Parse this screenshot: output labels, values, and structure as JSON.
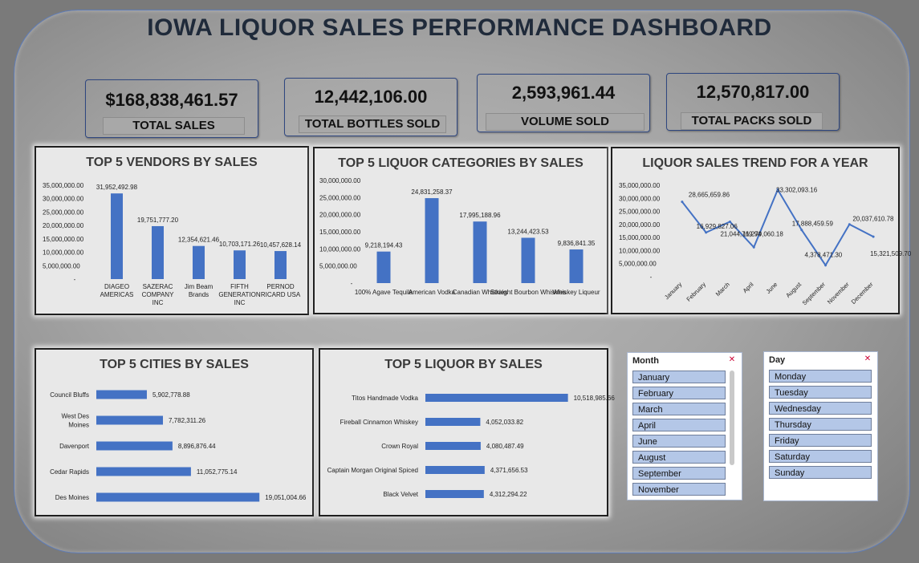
{
  "title": "IOWA LIQUOR SALES PERFORMANCE DASHBOARD",
  "kpis": [
    {
      "value": "$168,838,461.57",
      "label": "TOTAL SALES"
    },
    {
      "value": "12,442,106.00",
      "label": "TOTAL BOTTLES SOLD"
    },
    {
      "value": "2,593,961.44",
      "label": "VOLUME SOLD"
    },
    {
      "value": "12,570,817.00",
      "label": "TOTAL PACKS SOLD"
    }
  ],
  "colors": {
    "bar": "#4472c4",
    "axis_text": "#222222"
  },
  "chart_data": [
    {
      "type": "bar",
      "title": "TOP 5 VENDORS BY SALES",
      "categories": [
        "DIAGEO AMERICAS",
        "SAZERAC COMPANY INC",
        "Jim Beam Brands",
        "FIFTH GENERATION INC",
        "PERNOD RICARD USA"
      ],
      "category_lines": [
        [
          "DIAGEO",
          "AMERICAS"
        ],
        [
          "SAZERAC",
          "COMPANY",
          "INC"
        ],
        [
          "Jim Beam",
          "Brands"
        ],
        [
          "FIFTH",
          "GENERATION",
          "INC"
        ],
        [
          "PERNOD",
          "RICARD USA"
        ]
      ],
      "values": [
        31952492.98,
        19751777.2,
        12354621.46,
        10703171.26,
        10457628.14
      ],
      "data_labels": [
        "31,952,492.98",
        "19,751,777.20",
        "12,354,621.46",
        "10,703,171.26",
        "10,457,628.14"
      ],
      "yticks": [
        "-",
        "5,000,000.00",
        "10,000,000.00",
        "15,000,000.00",
        "20,000,000.00",
        "25,000,000.00",
        "30,000,000.00",
        "35,000,000.00"
      ],
      "ylim": [
        0,
        35000000
      ]
    },
    {
      "type": "bar",
      "title": "TOP 5 LIQUOR CATEGORIES BY SALES",
      "categories": [
        "100% Agave Tequila",
        "American Vodka",
        "Canadian Whiskies",
        "Straight Bourbon Whiskies",
        "Whiskey Liqueur"
      ],
      "values": [
        9218194.43,
        24831258.37,
        17995188.96,
        13244423.53,
        9836841.35
      ],
      "data_labels": [
        "9,218,194.43",
        "24,831,258.37",
        "17,995,188.96",
        "13,244,423.53",
        "9,836,841.35"
      ],
      "yticks": [
        "-",
        "5,000,000.00",
        "10,000,000.00",
        "15,000,000.00",
        "20,000,000.00",
        "25,000,000.00",
        "30,000,000.00"
      ],
      "ylim": [
        0,
        30000000
      ]
    },
    {
      "type": "line",
      "title": "LIQUOR SALES TREND FOR A YEAR",
      "categories": [
        "January",
        "February",
        "March",
        "April",
        "June",
        "August",
        "September",
        "November",
        "December"
      ],
      "values": [
        28665659.86,
        16929827.06,
        21044769.94,
        11270060.18,
        33302093.16,
        17888459.59,
        4378471.3,
        20037610.78,
        15321509.7
      ],
      "data_labels": [
        "28,665,659.86",
        "16,929,827.06",
        "21,044,769.94",
        "11,270,060.18",
        "33,302,093.16",
        "17,888,459.59",
        "4,378,471.30",
        "20,037,610.78",
        "15,321,509.70"
      ],
      "yticks": [
        "-",
        "5,000,000.00",
        "10,000,000.00",
        "15,000,000.00",
        "20,000,000.00",
        "25,000,000.00",
        "30,000,000.00",
        "35,000,000.00"
      ],
      "ylim": [
        0,
        35000000
      ]
    },
    {
      "type": "bar",
      "orientation": "horizontal",
      "title": "TOP 5 CITIES BY SALES",
      "categories": [
        "Council Bluffs",
        "West Des Moines",
        "Davenport",
        "Cedar Rapids",
        "Des Moines"
      ],
      "category_lines": [
        [
          "Council Bluffs"
        ],
        [
          "West Des",
          "Moines"
        ],
        [
          "Davenport"
        ],
        [
          "Cedar Rapids"
        ],
        [
          "Des Moines"
        ]
      ],
      "values": [
        5902778.88,
        7782311.26,
        8896876.44,
        11052775.14,
        19051004.66
      ],
      "data_labels": [
        "5,902,778.88",
        "7,782,311.26",
        "8,896,876.44",
        "11,052,775.14",
        "19,051,004.66"
      ],
      "xlim": [
        0,
        19500000
      ]
    },
    {
      "type": "bar",
      "orientation": "horizontal",
      "title": "TOP 5 LIQUOR BY SALES",
      "categories": [
        "Titos Handmade Vodka",
        "Fireball Cinnamon Whiskey",
        "Crown Royal",
        "Captain Morgan Original Spiced",
        "Black Velvet"
      ],
      "values": [
        10518985.66,
        4052033.82,
        4080487.49,
        4371656.53,
        4312294.22
      ],
      "data_labels": [
        "10,518,985.66",
        "4,052,033.82",
        "4,080,487.49",
        "4,371,656.53",
        "4,312,294.22"
      ],
      "xlim": [
        0,
        10600000
      ]
    }
  ],
  "slicers": {
    "month": {
      "header": "Month",
      "items": [
        "January",
        "February",
        "March",
        "April",
        "June",
        "August",
        "September",
        "November"
      ]
    },
    "day": {
      "header": "Day",
      "items": [
        "Monday",
        "Tuesday",
        "Wednesday",
        "Thursday",
        "Friday",
        "Saturday",
        "Sunday"
      ]
    }
  }
}
